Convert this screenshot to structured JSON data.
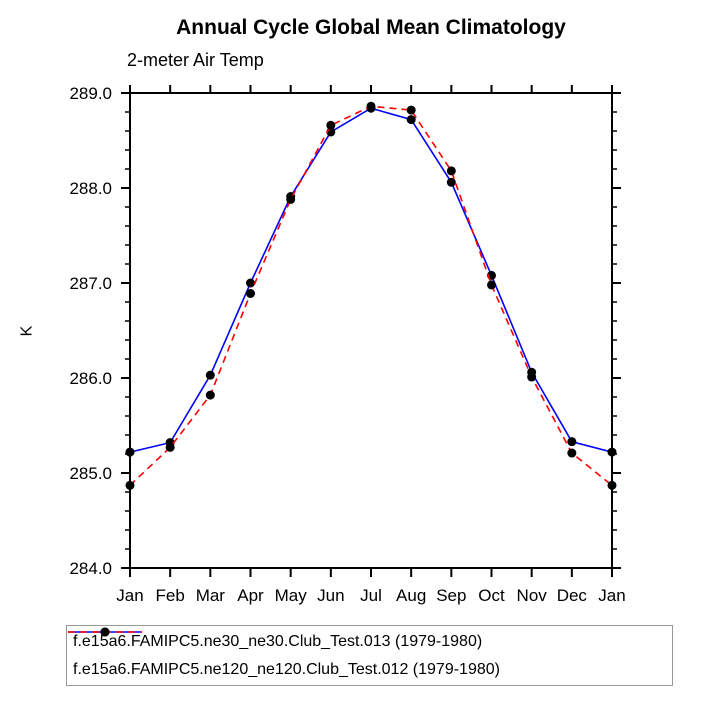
{
  "title": "Annual Cycle Global Mean Climatology",
  "subtitle": "2-meter Air Temp",
  "ylabel": "K",
  "chart_data": {
    "type": "line",
    "categories": [
      "Jan",
      "Feb",
      "Mar",
      "Apr",
      "May",
      "Jun",
      "Jul",
      "Aug",
      "Sep",
      "Oct",
      "Nov",
      "Dec",
      "Jan"
    ],
    "xlabel": "",
    "ylabel": "K",
    "ylim": [
      284.0,
      289.0
    ],
    "ytick_major": 1.0,
    "ytick_minor": 0.2,
    "ytick_labels": [
      "284.0",
      "285.0",
      "286.0",
      "287.0",
      "288.0",
      "289.0"
    ],
    "grid": false,
    "legend_position": "bottom",
    "series": [
      {
        "name": "f.e15a6.FAMIPC5.ne30_ne30.Club_Test.013 (1979-1980)",
        "color": "#0000ff",
        "style": "solid",
        "marker": "black-dot",
        "values": [
          285.22,
          285.32,
          286.03,
          287.0,
          287.91,
          288.59,
          288.84,
          288.72,
          288.06,
          287.08,
          286.06,
          285.33,
          285.22
        ]
      },
      {
        "name": "f.e15a6.FAMIPC5.ne120_ne120.Club_Test.012 (1979-1980)",
        "color": "#ff0000",
        "style": "dashed",
        "marker": "black-dot",
        "values": [
          284.87,
          285.27,
          285.82,
          286.89,
          287.88,
          288.66,
          288.86,
          288.82,
          288.18,
          286.98,
          286.01,
          285.21,
          284.87
        ]
      }
    ]
  },
  "colors": {
    "axis": "#000000",
    "marker": "#000000",
    "legend_border": "#999999",
    "background": "#ffffff"
  }
}
